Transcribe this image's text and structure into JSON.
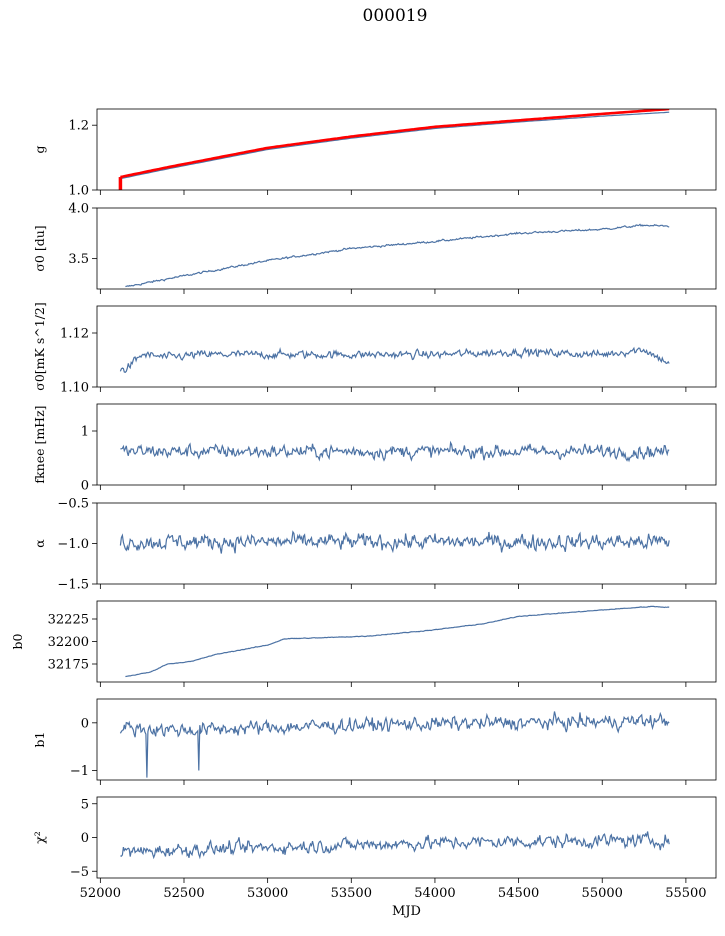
{
  "title": "000019",
  "xlabel": "MJD",
  "colors": {
    "series": "#4c72a4",
    "model": "#ff0000",
    "axis": "#000000"
  },
  "chart_data": {
    "type": "line",
    "shared_x": true,
    "xlim": [
      51980,
      55680
    ],
    "xticks": [
      52000,
      52500,
      53000,
      53500,
      54000,
      54500,
      55000,
      55500
    ],
    "x_range_data": [
      52120,
      55400
    ],
    "grid": false,
    "panels": [
      {
        "ylabel": "g",
        "ylim": [
          1.0,
          1.25
        ],
        "yticks": [
          1.0,
          1.2
        ],
        "ytick_labels": [
          "1.0",
          "1.2"
        ],
        "series": [
          {
            "kind": "blue-trend",
            "color": "#4c72a4",
            "trend": [
              [
                52120,
                1.035
              ],
              [
                52400,
                1.065
              ],
              [
                52700,
                1.095
              ],
              [
                53000,
                1.125
              ],
              [
                53500,
                1.16
              ],
              [
                54000,
                1.19
              ],
              [
                54500,
                1.21
              ],
              [
                55000,
                1.228
              ],
              [
                55400,
                1.24
              ]
            ]
          },
          {
            "kind": "red-trend",
            "color": "#ff0000",
            "trend": [
              [
                52120,
                1.04
              ],
              [
                52400,
                1.07
              ],
              [
                52700,
                1.1
              ],
              [
                53000,
                1.13
              ],
              [
                53500,
                1.165
              ],
              [
                54000,
                1.195
              ],
              [
                54500,
                1.215
              ],
              [
                55000,
                1.235
              ],
              [
                55400,
                1.25
              ]
            ],
            "spike_at": 52120,
            "spike_to": 1.0
          }
        ]
      },
      {
        "ylabel": "σ0 [du]",
        "ylim": [
          3.2,
          4.0
        ],
        "yticks": [
          3.5,
          4.0
        ],
        "ytick_labels": [
          "3.5",
          "4.0"
        ],
        "series": [
          {
            "kind": "noisy-trend",
            "color": "#4c72a4",
            "noise": 0.008,
            "trend": [
              [
                52150,
                3.22
              ],
              [
                52400,
                3.3
              ],
              [
                52700,
                3.39
              ],
              [
                53000,
                3.48
              ],
              [
                53500,
                3.6
              ],
              [
                54000,
                3.67
              ],
              [
                54500,
                3.75
              ],
              [
                55000,
                3.79
              ],
              [
                55250,
                3.83
              ],
              [
                55400,
                3.82
              ]
            ]
          }
        ]
      },
      {
        "ylabel": "σ0[mK s^1/2]",
        "ylim": [
          1.1,
          1.13
        ],
        "yticks": [
          1.1,
          1.12
        ],
        "ytick_labels": [
          "1.10",
          "1.12"
        ],
        "series": [
          {
            "kind": "noisy-trend",
            "color": "#4c72a4",
            "noise": 0.0012,
            "trend": [
              [
                52120,
                1.106
              ],
              [
                52160,
                1.107
              ],
              [
                52250,
                1.112
              ],
              [
                52400,
                1.111
              ],
              [
                52600,
                1.112
              ],
              [
                53000,
                1.112
              ],
              [
                53500,
                1.112
              ],
              [
                54000,
                1.112
              ],
              [
                54500,
                1.113
              ],
              [
                55000,
                1.112
              ],
              [
                55250,
                1.114
              ],
              [
                55330,
                1.111
              ],
              [
                55400,
                1.109
              ]
            ]
          }
        ]
      },
      {
        "ylabel": "fknee [mHz]",
        "ylim": [
          0,
          1.5
        ],
        "yticks": [
          0,
          1
        ],
        "ytick_labels": [
          "0",
          "1"
        ],
        "series": [
          {
            "kind": "noisy-trend",
            "color": "#4c72a4",
            "noise": 0.1,
            "trend": [
              [
                52120,
                0.62
              ],
              [
                55400,
                0.62
              ]
            ]
          }
        ]
      },
      {
        "ylabel": "α",
        "ylim": [
          -1.5,
          -0.5
        ],
        "yticks": [
          -1.5,
          -1.0,
          -0.5
        ],
        "ytick_labels": [
          "−1.5",
          "−1.0",
          "−0.5"
        ],
        "series": [
          {
            "kind": "noisy-trend",
            "color": "#4c72a4",
            "noise": 0.08,
            "trend": [
              [
                52120,
                -0.98
              ],
              [
                55400,
                -0.98
              ]
            ]
          }
        ]
      },
      {
        "ylabel": "b0",
        "ylim": [
          32155,
          32245
        ],
        "yticks": [
          32175,
          32200,
          32225
        ],
        "ytick_labels": [
          "32175",
          "32200",
          "32225"
        ],
        "series": [
          {
            "kind": "noisy-trend",
            "color": "#4c72a4",
            "noise": 0.3,
            "trend": [
              [
                52150,
                32161
              ],
              [
                52300,
                32166
              ],
              [
                52400,
                32175
              ],
              [
                52550,
                32178
              ],
              [
                52620,
                32182
              ],
              [
                52700,
                32186
              ],
              [
                53000,
                32196
              ],
              [
                53100,
                32203
              ],
              [
                53300,
                32204
              ],
              [
                53600,
                32206
              ],
              [
                54000,
                32213
              ],
              [
                54300,
                32220
              ],
              [
                54500,
                32228
              ],
              [
                55000,
                32235
              ],
              [
                55300,
                32239
              ],
              [
                55400,
                32238
              ]
            ]
          }
        ]
      },
      {
        "ylabel": "b1",
        "ylim": [
          -1.2,
          0.5
        ],
        "yticks": [
          -1,
          0
        ],
        "ytick_labels": [
          "−1",
          "0"
        ],
        "series": [
          {
            "kind": "noisy-trend",
            "color": "#4c72a4",
            "noise": 0.12,
            "trend": [
              [
                52120,
                -0.1
              ],
              [
                52500,
                -0.15
              ],
              [
                53000,
                -0.1
              ],
              [
                53500,
                -0.05
              ],
              [
                54000,
                -0.02
              ],
              [
                54500,
                0.0
              ],
              [
                55000,
                0.02
              ],
              [
                55400,
                0.05
              ]
            ],
            "dips": [
              [
                52280,
                -1.15
              ],
              [
                52590,
                -1.0
              ]
            ]
          }
        ]
      },
      {
        "ylabel": "χ²",
        "ylim": [
          -6,
          6
        ],
        "yticks": [
          -5,
          0,
          5
        ],
        "ytick_labels": [
          "−5",
          "0",
          "5"
        ],
        "series": [
          {
            "kind": "noisy-trend",
            "color": "#4c72a4",
            "noise": 0.8,
            "trend": [
              [
                52120,
                -2.2
              ],
              [
                52500,
                -1.8
              ],
              [
                53000,
                -1.5
              ],
              [
                53500,
                -1.1
              ],
              [
                54000,
                -0.8
              ],
              [
                54500,
                -0.6
              ],
              [
                55000,
                -0.5
              ],
              [
                55400,
                -0.4
              ]
            ]
          }
        ]
      }
    ]
  }
}
